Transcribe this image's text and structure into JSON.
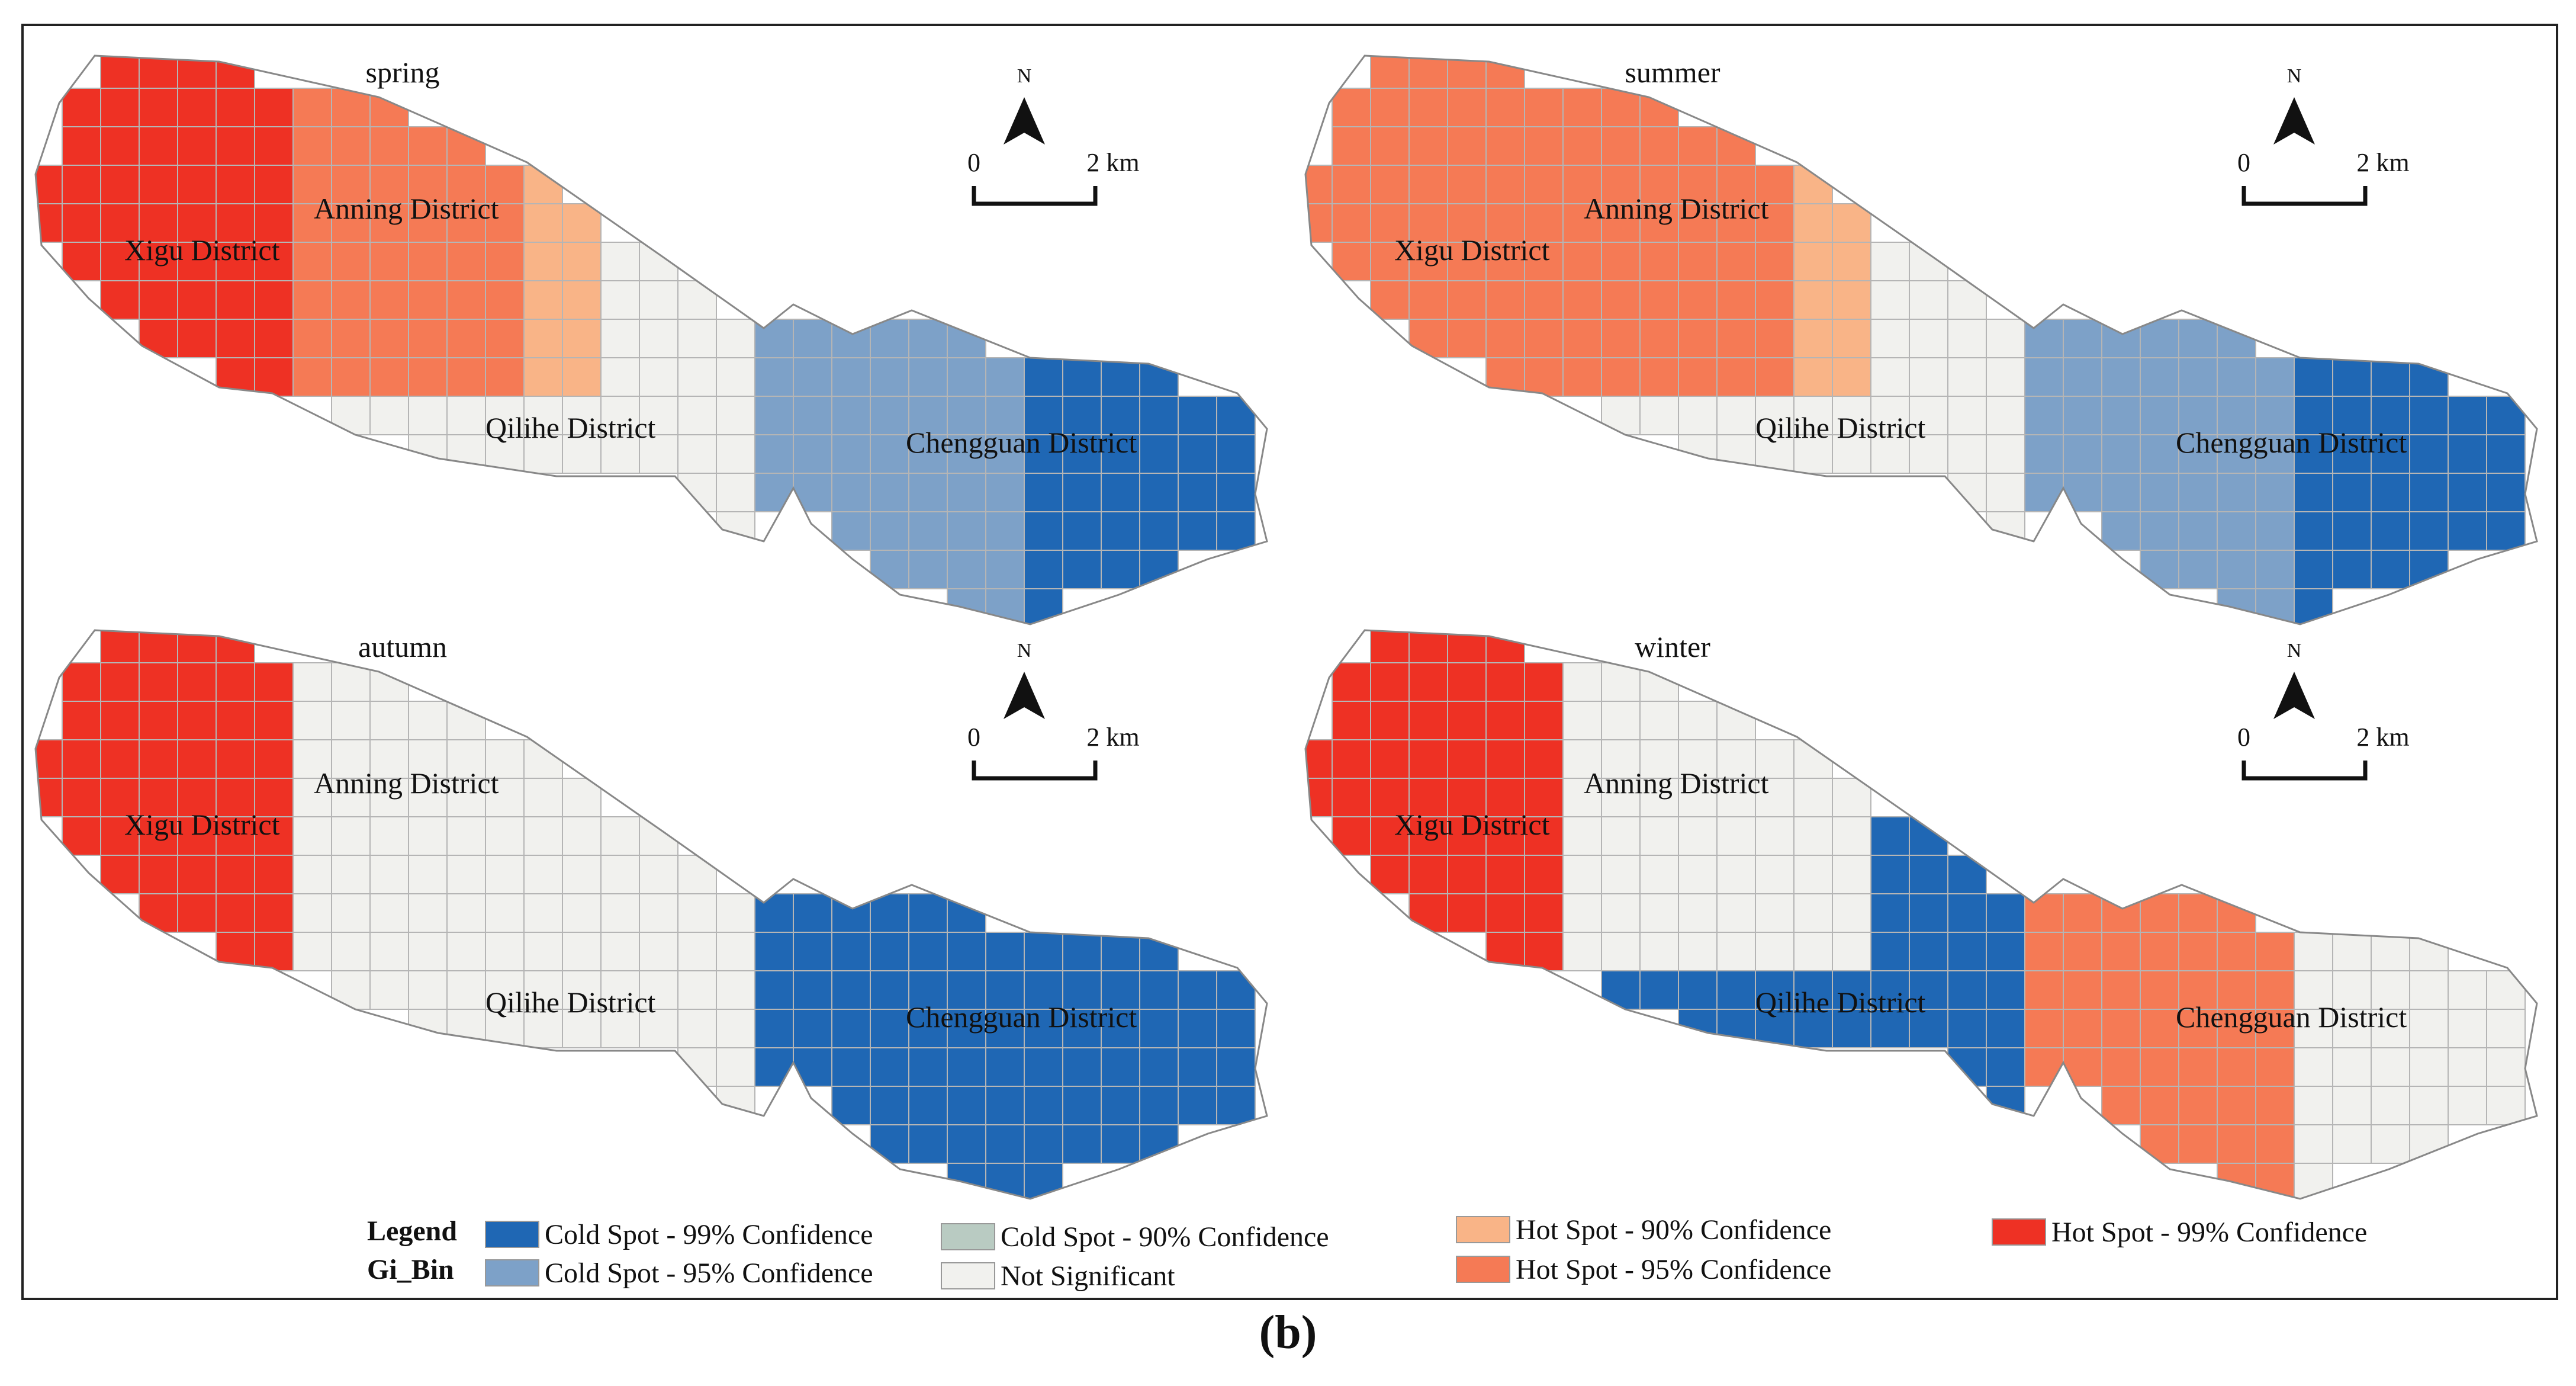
{
  "figure_label": "(b)",
  "colors": {
    "cold99": "#1f67b4",
    "cold95": "#7da1c8",
    "cold90": "#b9cbc2",
    "notsig": "#f1f1ee",
    "hot90": "#f9b487",
    "hot95": "#f57a55",
    "hot99": "#ee3124",
    "grid": "#b5b5b5",
    "outline": "#888888"
  },
  "north_label": "N",
  "scale_labels": {
    "zero": "0",
    "dist": "2 km"
  },
  "panels": [
    {
      "season": "spring",
      "districts": [
        "Xigu District",
        "Anning District",
        "Qilihe District",
        "Chengguan District"
      ],
      "hotspots": {
        "west": "hot99",
        "anning": "hot95",
        "anning_edge": "hot90",
        "chengguan": "cold95",
        "chengguan_east": "cold99",
        "qilihe": "notsig"
      }
    },
    {
      "season": "summer",
      "districts": [
        "Xigu District",
        "Anning District",
        "Qilihe District",
        "Chengguan District"
      ],
      "hotspots": {
        "west": "hot95",
        "anning": "hot95",
        "anning_edge": "hot90",
        "chengguan": "cold95",
        "chengguan_east": "cold99",
        "qilihe": "notsig"
      }
    },
    {
      "season": "autumn",
      "districts": [
        "Xigu District",
        "Anning District",
        "Qilihe District",
        "Chengguan District"
      ],
      "hotspots": {
        "west": "hot99",
        "anning": "notsig",
        "anning_edge": "notsig",
        "chengguan": "cold99",
        "chengguan_east": "cold99",
        "qilihe": "notsig"
      }
    },
    {
      "season": "winter",
      "districts": [
        "Xigu District",
        "Anning District",
        "Qilihe District",
        "Chengguan District"
      ],
      "hotspots": {
        "west": "hot99",
        "anning": "notsig",
        "anning_edge": "notsig",
        "chengguan": "hot95",
        "chengguan_east": "notsig",
        "qilihe": "cold99"
      }
    }
  ],
  "legend": {
    "title": "Legend",
    "subtitle": "Gi_Bin",
    "items": [
      {
        "label": "Cold Spot - 99% Confidence",
        "color": "cold99"
      },
      {
        "label": "Cold Spot - 95% Confidence",
        "color": "cold95"
      },
      {
        "label": "Cold Spot - 90% Confidence",
        "color": "cold90"
      },
      {
        "label": "Not Significant",
        "color": "notsig"
      },
      {
        "label": "Hot Spot - 90% Confidence",
        "color": "hot90"
      },
      {
        "label": "Hot Spot - 95% Confidence",
        "color": "hot95"
      },
      {
        "label": "Hot Spot - 99% Confidence",
        "color": "hot99"
      }
    ]
  }
}
